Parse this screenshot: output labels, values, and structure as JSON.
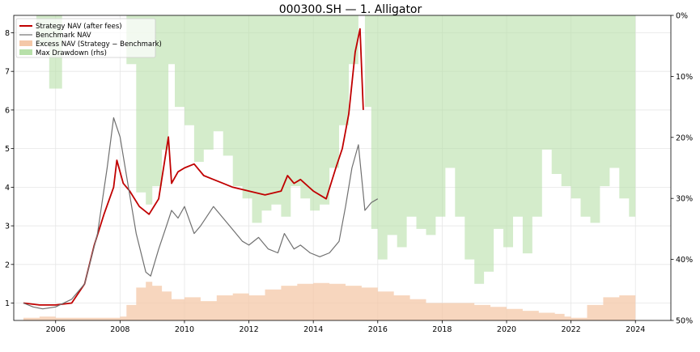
{
  "chart_data": {
    "type": "line",
    "title": "000300.SH — 1. Alligator",
    "xlabel": "",
    "ylabel": "",
    "xlim": [
      2004.7,
      2025.1
    ],
    "ylim": [
      0.55,
      8.45
    ],
    "y2lim": [
      0.0,
      0.5
    ],
    "y2_inverted": true,
    "grid": true,
    "legend_position": "top-left",
    "x_ticks": [
      2006,
      2008,
      2010,
      2012,
      2014,
      2016,
      2018,
      2020,
      2022,
      2024
    ],
    "x_tick_labels": [
      "2006",
      "2008",
      "2010",
      "2012",
      "2014",
      "2016",
      "2018",
      "2020",
      "2022",
      "2024"
    ],
    "y_ticks": [
      1,
      2,
      3,
      4,
      5,
      6,
      7,
      8
    ],
    "y_tick_labels": [
      "1",
      "2",
      "3",
      "4",
      "5",
      "6",
      "7",
      "8"
    ],
    "y2_ticks": [
      0.0,
      0.1,
      0.2,
      0.3,
      0.4,
      0.5
    ],
    "y2_tick_labels": [
      "0%",
      "10%",
      "20%",
      "30%",
      "40%",
      "50%"
    ],
    "colors": {
      "strategy": "#c00000",
      "benchmark": "#707070",
      "excess": "#f4c8a8",
      "drawdown": "#b7e0a9"
    },
    "series": [
      {
        "name": "Strategy NAV (after fees)",
        "kind": "line",
        "x": [
          2005.0,
          2005.5,
          2006.0,
          2006.5,
          2006.9,
          2007.2,
          2007.5,
          2007.8,
          2007.9,
          2008.1,
          2008.3,
          2008.6,
          2008.9,
          2009.2,
          2009.5,
          2009.6,
          2009.8,
          2010.0,
          2010.3,
          2010.6,
          2010.9,
          2011.2,
          2011.5,
          2012.0,
          2012.5,
          2013.0,
          2013.2,
          2013.4,
          2013.6,
          2014.0,
          2014.4,
          2014.7,
          2014.9,
          2015.1,
          2015.3,
          2015.45,
          2015.55
        ],
        "y": [
          1.0,
          0.95,
          0.95,
          1.0,
          1.5,
          2.5,
          3.3,
          4.0,
          4.7,
          4.1,
          3.9,
          3.5,
          3.3,
          3.7,
          5.3,
          4.1,
          4.4,
          4.5,
          4.6,
          4.3,
          4.2,
          4.1,
          4.0,
          3.9,
          3.8,
          3.9,
          4.3,
          4.1,
          4.2,
          3.9,
          3.7,
          4.5,
          5.0,
          5.9,
          7.5,
          8.1,
          6.0
        ]
      },
      {
        "name": "Benchmark NAV",
        "kind": "line",
        "x": [
          2005.0,
          2005.3,
          2005.6,
          2006.0,
          2006.5,
          2006.9,
          2007.3,
          2007.6,
          2007.8,
          2008.0,
          2008.2,
          2008.5,
          2008.8,
          2008.95,
          2009.2,
          2009.4,
          2009.6,
          2009.8,
          2010.0,
          2010.3,
          2010.5,
          2010.9,
          2011.2,
          2011.5,
          2011.8,
          2012.0,
          2012.3,
          2012.6,
          2012.9,
          2013.1,
          2013.4,
          2013.6,
          2013.9,
          2014.2,
          2014.5,
          2014.8,
          2015.0,
          2015.2,
          2015.4,
          2015.6,
          2015.8,
          2016.0
        ],
        "y": [
          1.0,
          0.9,
          0.85,
          0.9,
          1.1,
          1.5,
          2.8,
          4.5,
          5.8,
          5.3,
          4.3,
          2.8,
          1.8,
          1.7,
          2.4,
          2.9,
          3.4,
          3.2,
          3.5,
          2.8,
          3.0,
          3.5,
          3.2,
          2.9,
          2.6,
          2.5,
          2.7,
          2.4,
          2.3,
          2.8,
          2.4,
          2.5,
          2.3,
          2.2,
          2.3,
          2.6,
          3.5,
          4.5,
          5.1,
          3.4,
          3.6,
          3.7
        ]
      },
      {
        "name": "Excess NAV (Strategy − Benchmark)",
        "kind": "area",
        "x": [
          2005.0,
          2005.5,
          2006.0,
          2007.0,
          2008.0,
          2008.2,
          2008.5,
          2008.8,
          2009.0,
          2009.3,
          2009.6,
          2010.0,
          2010.5,
          2011.0,
          2011.5,
          2012.0,
          2012.5,
          2013.0,
          2013.5,
          2014.0,
          2014.5,
          2015.0,
          2015.5,
          2016.0,
          2016.5,
          2017.0,
          2017.5,
          2018.0,
          2018.5,
          2019.0,
          2019.5,
          2020.0,
          2020.5,
          2021.0,
          2021.5,
          2021.8,
          2022.0,
          2022.5,
          2023.0,
          2023.5,
          2024.0
        ],
        "y": [
          0.62,
          0.65,
          0.62,
          0.62,
          0.65,
          0.95,
          1.4,
          1.55,
          1.45,
          1.3,
          1.1,
          1.15,
          1.05,
          1.2,
          1.25,
          1.2,
          1.35,
          1.45,
          1.5,
          1.52,
          1.5,
          1.45,
          1.4,
          1.3,
          1.2,
          1.1,
          1.0,
          1.0,
          1.0,
          0.95,
          0.9,
          0.85,
          0.8,
          0.75,
          0.72,
          0.65,
          0.62,
          0.95,
          1.15,
          1.2,
          1.35
        ]
      },
      {
        "name": "Max Drawdown (rhs)",
        "kind": "area-rhs",
        "x": [
          2005.0,
          2005.4,
          2005.8,
          2006.2,
          2006.6,
          2007.0,
          2007.4,
          2007.9,
          2008.2,
          2008.5,
          2008.8,
          2009.0,
          2009.3,
          2009.5,
          2009.7,
          2010.0,
          2010.3,
          2010.6,
          2010.9,
          2011.2,
          2011.5,
          2011.8,
          2012.1,
          2012.4,
          2012.7,
          2013.0,
          2013.3,
          2013.6,
          2013.9,
          2014.2,
          2014.5,
          2014.8,
          2015.1,
          2015.4,
          2015.6,
          2015.8,
          2016.0,
          2016.3,
          2016.6,
          2016.9,
          2017.2,
          2017.5,
          2017.8,
          2018.1,
          2018.4,
          2018.7,
          2019.0,
          2019.3,
          2019.6,
          2019.9,
          2020.2,
          2020.5,
          2020.8,
          2021.1,
          2021.4,
          2021.7,
          2022.0,
          2022.3,
          2022.6,
          2022.9,
          2023.2,
          2023.5,
          2023.8,
          2024.0
        ],
        "y": [
          0.0,
          0.05,
          0.12,
          0.0,
          0.0,
          0.0,
          0.0,
          0.0,
          0.08,
          0.29,
          0.31,
          0.28,
          0.22,
          0.08,
          0.15,
          0.18,
          0.24,
          0.22,
          0.19,
          0.23,
          0.28,
          0.3,
          0.34,
          0.32,
          0.31,
          0.33,
          0.28,
          0.3,
          0.32,
          0.31,
          0.25,
          0.18,
          0.08,
          0.0,
          0.15,
          0.35,
          0.4,
          0.36,
          0.38,
          0.33,
          0.35,
          0.36,
          0.33,
          0.25,
          0.33,
          0.4,
          0.44,
          0.42,
          0.35,
          0.38,
          0.33,
          0.39,
          0.33,
          0.22,
          0.26,
          0.28,
          0.3,
          0.33,
          0.34,
          0.28,
          0.25,
          0.3,
          0.33,
          0.35
        ]
      }
    ]
  }
}
